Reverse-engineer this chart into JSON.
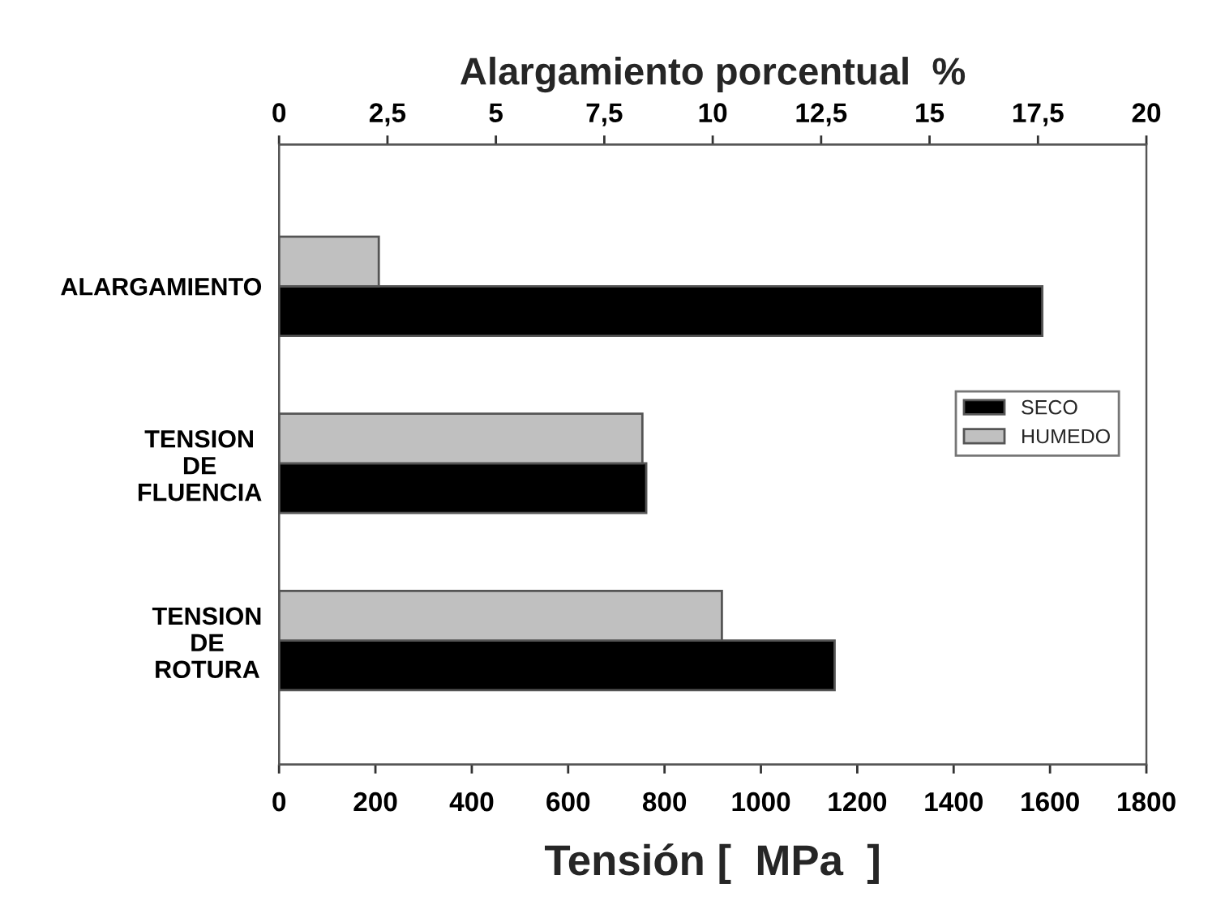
{
  "chart_data": {
    "type": "bar",
    "orientation": "horizontal",
    "categories": [
      "ALARGAMIENTO",
      "TENSION\nDE\nFLUENCIA",
      "TENSION\nDE\nROTURA"
    ],
    "series": [
      {
        "name": "SECO",
        "color": "#000000",
        "values": [
          null,
          762,
          1153
        ]
      },
      {
        "name": "HUMEDO",
        "color": "#c0c0c0",
        "values": [
          null,
          754,
          919
        ]
      },
      {
        "color": "#000000",
        "axis": "x2",
        "values": [
          17.6,
          null,
          null
        ]
      },
      {
        "color": "#c0c0c0",
        "axis": "x2",
        "values": [
          2.3,
          null,
          null
        ]
      }
    ],
    "xlabel": "Tensión [  MPa  ]",
    "x2label": "Alargamiento porcentual  %",
    "xlim": [
      0,
      1800
    ],
    "xticks": [
      0,
      200,
      400,
      600,
      800,
      1000,
      1200,
      1400,
      1600,
      1800
    ],
    "x2lim": [
      0,
      20
    ],
    "x2ticks": [
      0,
      {
        "value": 2.5,
        "label": "2,5"
      },
      5,
      {
        "value": 7.5,
        "label": "7,5"
      },
      10,
      {
        "value": 12.5,
        "label": "12,5"
      },
      15,
      {
        "value": 17.5,
        "label": "17,5"
      },
      20
    ],
    "legend": "right",
    "grid": false
  }
}
